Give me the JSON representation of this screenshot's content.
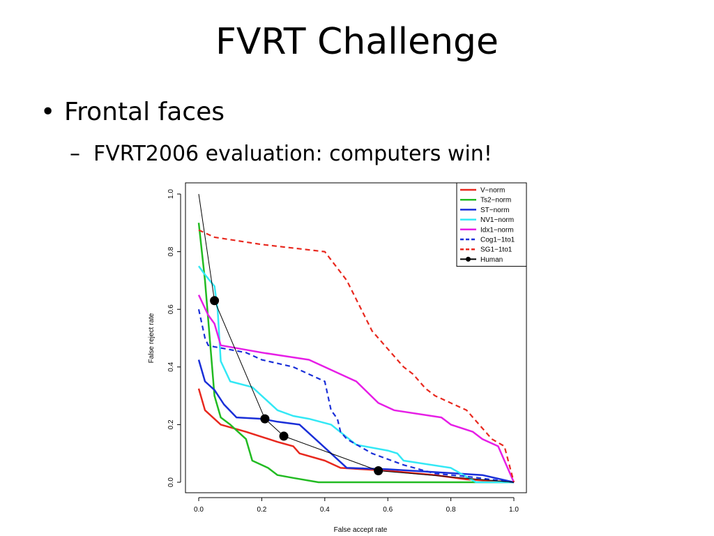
{
  "slide": {
    "title": "FVRT Challenge",
    "bullet_symbol": "•",
    "bullet": "Frontal faces",
    "sub_bullet_symbol": "–",
    "sub_bullet": "FVRT2006 evaluation: computers win!"
  },
  "chart_data": {
    "type": "line",
    "title": "",
    "xlabel": "False accept rate",
    "ylabel": "False reject rate",
    "xlim": [
      0,
      1
    ],
    "ylim": [
      0,
      1
    ],
    "x_ticks": [
      "0.0",
      "0.2",
      "0.4",
      "0.6",
      "0.8",
      "1.0"
    ],
    "y_ticks": [
      "0.0",
      "0.2",
      "0.4",
      "0.6",
      "0.8",
      "1.0"
    ],
    "legend_position": "top-right",
    "grid": false,
    "series": [
      {
        "name": "V−norm",
        "color": "#e8281e",
        "dashed": false,
        "width": 2.5,
        "x": [
          0.0,
          0.02,
          0.07,
          0.15,
          0.25,
          0.3,
          0.32,
          0.4,
          0.45,
          0.6,
          0.75,
          0.85,
          1.0
        ],
        "y": [
          0.325,
          0.25,
          0.2,
          0.175,
          0.14,
          0.125,
          0.1,
          0.075,
          0.05,
          0.04,
          0.025,
          0.01,
          0.0
        ]
      },
      {
        "name": "Ts2−norm",
        "color": "#22bb22",
        "dashed": false,
        "width": 2.5,
        "x": [
          0.0,
          0.02,
          0.05,
          0.07,
          0.1,
          0.15,
          0.17,
          0.22,
          0.25,
          0.3,
          0.38,
          1.0
        ],
        "y": [
          0.9,
          0.7,
          0.3,
          0.225,
          0.2,
          0.15,
          0.075,
          0.05,
          0.025,
          0.015,
          0.0,
          0.0
        ]
      },
      {
        "name": "ST−norm",
        "color": "#1a2fd8",
        "dashed": false,
        "width": 2.5,
        "x": [
          0.0,
          0.02,
          0.05,
          0.08,
          0.12,
          0.2,
          0.25,
          0.32,
          0.4,
          0.47,
          0.6,
          0.75,
          0.9,
          1.0
        ],
        "y": [
          0.425,
          0.35,
          0.32,
          0.27,
          0.225,
          0.22,
          0.21,
          0.2,
          0.12,
          0.05,
          0.045,
          0.035,
          0.025,
          0.0
        ]
      },
      {
        "name": "NV1−norm",
        "color": "#33e8f5",
        "dashed": false,
        "width": 2.5,
        "x": [
          0.0,
          0.02,
          0.05,
          0.06,
          0.07,
          0.1,
          0.17,
          0.25,
          0.3,
          0.35,
          0.42,
          0.5,
          0.6,
          0.63,
          0.65,
          0.8,
          0.88,
          1.0
        ],
        "y": [
          0.75,
          0.72,
          0.68,
          0.6,
          0.42,
          0.35,
          0.33,
          0.25,
          0.23,
          0.22,
          0.2,
          0.13,
          0.11,
          0.1,
          0.075,
          0.05,
          0.0,
          0.0
        ]
      },
      {
        "name": "Idx1−norm",
        "color": "#e61ee6",
        "dashed": false,
        "width": 2.5,
        "x": [
          0.0,
          0.03,
          0.05,
          0.07,
          0.2,
          0.35,
          0.5,
          0.57,
          0.62,
          0.77,
          0.8,
          0.87,
          0.9,
          0.95,
          1.0
        ],
        "y": [
          0.65,
          0.58,
          0.55,
          0.475,
          0.45,
          0.425,
          0.35,
          0.275,
          0.25,
          0.225,
          0.2,
          0.175,
          0.15,
          0.125,
          0.0
        ]
      },
      {
        "name": "Cog1−1to1",
        "color": "#1a2fd8",
        "dashed": true,
        "width": 2.2,
        "x": [
          0.0,
          0.02,
          0.03,
          0.05,
          0.15,
          0.2,
          0.3,
          0.4,
          0.42,
          0.44,
          0.45,
          0.47,
          0.55,
          0.65,
          0.75,
          0.85,
          1.0
        ],
        "y": [
          0.6,
          0.5,
          0.475,
          0.47,
          0.45,
          0.425,
          0.4,
          0.35,
          0.25,
          0.22,
          0.175,
          0.15,
          0.1,
          0.06,
          0.03,
          0.02,
          0.0
        ]
      },
      {
        "name": "SG1−1to1",
        "color": "#e8281e",
        "dashed": true,
        "width": 2.2,
        "x": [
          0.0,
          0.05,
          0.2,
          0.4,
          0.47,
          0.55,
          0.65,
          0.68,
          0.72,
          0.75,
          0.85,
          0.93,
          0.97,
          1.0
        ],
        "y": [
          0.875,
          0.85,
          0.825,
          0.8,
          0.7,
          0.525,
          0.4,
          0.375,
          0.325,
          0.3,
          0.25,
          0.15,
          0.125,
          0.0
        ]
      },
      {
        "name": "Human",
        "color": "#000000",
        "dashed": false,
        "width": 1.0,
        "markers": true,
        "x": [
          0.0,
          0.05,
          0.21,
          0.27,
          0.57,
          1.0
        ],
        "y": [
          1.0,
          0.63,
          0.22,
          0.16,
          0.04,
          0.0
        ],
        "marker_x": [
          0.05,
          0.21,
          0.27,
          0.57
        ],
        "marker_y": [
          0.63,
          0.22,
          0.16,
          0.04
        ]
      }
    ]
  }
}
